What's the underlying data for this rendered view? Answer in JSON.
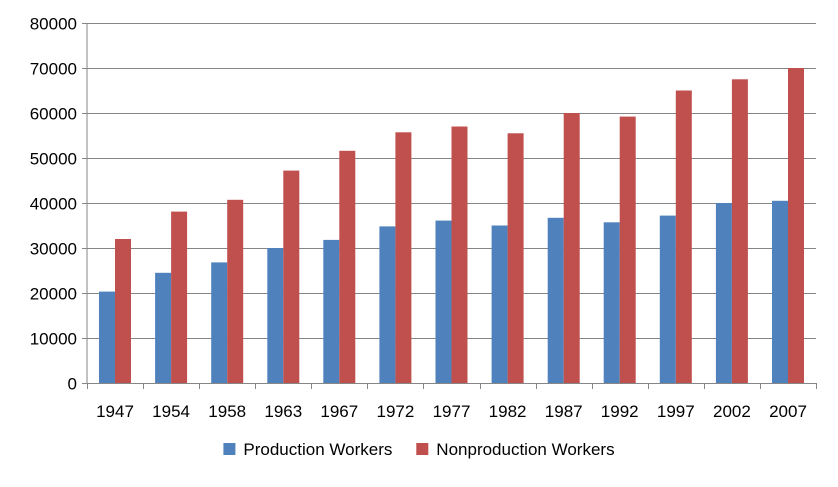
{
  "chart_data": {
    "type": "bar",
    "title": "",
    "xlabel": "",
    "ylabel": "",
    "categories": [
      "1947",
      "1954",
      "1958",
      "1963",
      "1967",
      "1972",
      "1977",
      "1982",
      "1987",
      "1992",
      "1997",
      "2002",
      "2007"
    ],
    "series": [
      {
        "name": "Production Workers",
        "color": "#4f81bd",
        "values": [
          20300,
          24500,
          26800,
          30000,
          31800,
          34800,
          36100,
          35000,
          36700,
          35700,
          37200,
          40000,
          40500
        ]
      },
      {
        "name": "Nonproduction Workers",
        "color": "#c0504d",
        "values": [
          32000,
          38100,
          40700,
          47200,
          51600,
          55700,
          57000,
          55500,
          60000,
          59200,
          65000,
          67500,
          70000
        ]
      }
    ],
    "ylim": [
      0,
      80000
    ],
    "yticks": [
      "0",
      "10000",
      "20000",
      "30000",
      "40000",
      "50000",
      "60000",
      "70000",
      "80000"
    ],
    "grid": true,
    "legend_position": "bottom"
  }
}
